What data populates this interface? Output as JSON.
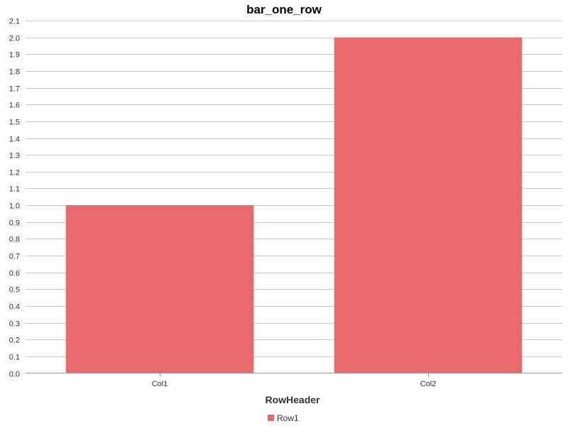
{
  "chart_data": {
    "type": "bar",
    "title": "bar_one_row",
    "xlabel": "RowHeader",
    "ylabel": "",
    "categories": [
      "Col1",
      "Col2"
    ],
    "series": [
      {
        "name": "Row1",
        "values": [
          1.0,
          2.0
        ],
        "color": "#e96a6a"
      }
    ],
    "ylim": [
      0,
      2.1
    ],
    "yticks": [
      "0.0",
      "0.1",
      "0.2",
      "0.3",
      "0.4",
      "0.5",
      "0.6",
      "0.7",
      "0.8",
      "0.9",
      "1.0",
      "1.1",
      "1.2",
      "1.3",
      "1.4",
      "1.5",
      "1.6",
      "1.7",
      "1.8",
      "1.9",
      "2.0",
      "2.1"
    ],
    "grid": true,
    "legend_position": "bottom-center"
  }
}
